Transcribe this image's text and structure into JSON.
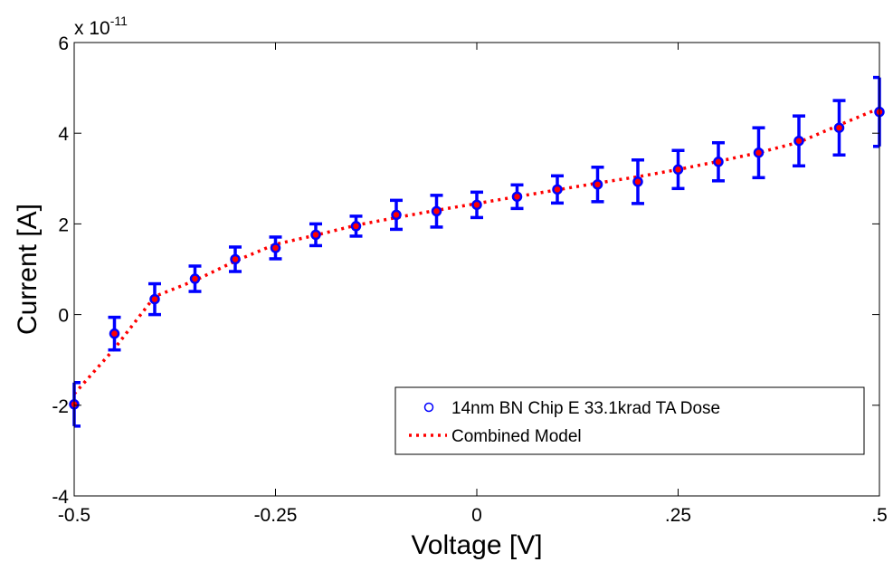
{
  "chart_data": {
    "type": "scatter",
    "xlabel": "Voltage [V]",
    "ylabel": "Current [A]",
    "xlim": [
      -0.5,
      0.5
    ],
    "ylim": [
      -4,
      6
    ],
    "y_scale_multiplier": "x 10",
    "y_scale_exponent": "-11",
    "x_ticks": [
      {
        "value": -0.5,
        "label": "-0.5"
      },
      {
        "value": -0.25,
        "label": "-0.25"
      },
      {
        "value": 0,
        "label": "0"
      },
      {
        "value": 0.25,
        "label": ".25"
      },
      {
        "value": 0.5,
        "label": ".5"
      }
    ],
    "y_ticks": [
      {
        "value": -4,
        "label": "-4"
      },
      {
        "value": -2,
        "label": "-2"
      },
      {
        "value": 0,
        "label": "0"
      },
      {
        "value": 2,
        "label": "2"
      },
      {
        "value": 4,
        "label": "4"
      },
      {
        "value": 6,
        "label": "6"
      }
    ],
    "grid": false,
    "legend_position": "bottom-right",
    "series": [
      {
        "name": "14nm BN Chip E 33.1krad TA Dose",
        "kind": "markers-with-errorbars",
        "color": "#0000ff",
        "face_color": "#ff0000",
        "x": [
          -0.5,
          -0.45,
          -0.4,
          -0.35,
          -0.3,
          -0.25,
          -0.2,
          -0.15,
          -0.1,
          -0.05,
          0,
          0.05,
          0.1,
          0.15,
          0.2,
          0.25,
          0.3,
          0.35,
          0.4,
          0.45,
          0.5
        ],
        "y": [
          -1.98,
          -0.42,
          0.34,
          0.79,
          1.22,
          1.47,
          1.76,
          1.95,
          2.2,
          2.28,
          2.42,
          2.6,
          2.76,
          2.87,
          2.93,
          3.2,
          3.37,
          3.57,
          3.83,
          4.12,
          4.47
        ],
        "err": [
          0.48,
          0.36,
          0.34,
          0.28,
          0.27,
          0.24,
          0.24,
          0.22,
          0.32,
          0.35,
          0.28,
          0.26,
          0.3,
          0.38,
          0.48,
          0.42,
          0.42,
          0.55,
          0.55,
          0.6,
          0.76
        ]
      },
      {
        "name": "Combined Model",
        "kind": "dotted-line",
        "color": "#ff0000",
        "x": [
          -0.5,
          -0.45,
          -0.4,
          -0.35,
          -0.3,
          -0.25,
          -0.2,
          -0.15,
          -0.1,
          -0.05,
          0,
          0.05,
          0.1,
          0.15,
          0.2,
          0.25,
          0.3,
          0.35,
          0.4,
          0.45,
          0.5
        ],
        "y": [
          -1.75,
          -0.75,
          0.4,
          0.75,
          1.18,
          1.55,
          1.75,
          1.97,
          2.14,
          2.3,
          2.45,
          2.6,
          2.75,
          2.9,
          3.04,
          3.2,
          3.38,
          3.57,
          3.8,
          4.18,
          4.55
        ]
      }
    ]
  }
}
